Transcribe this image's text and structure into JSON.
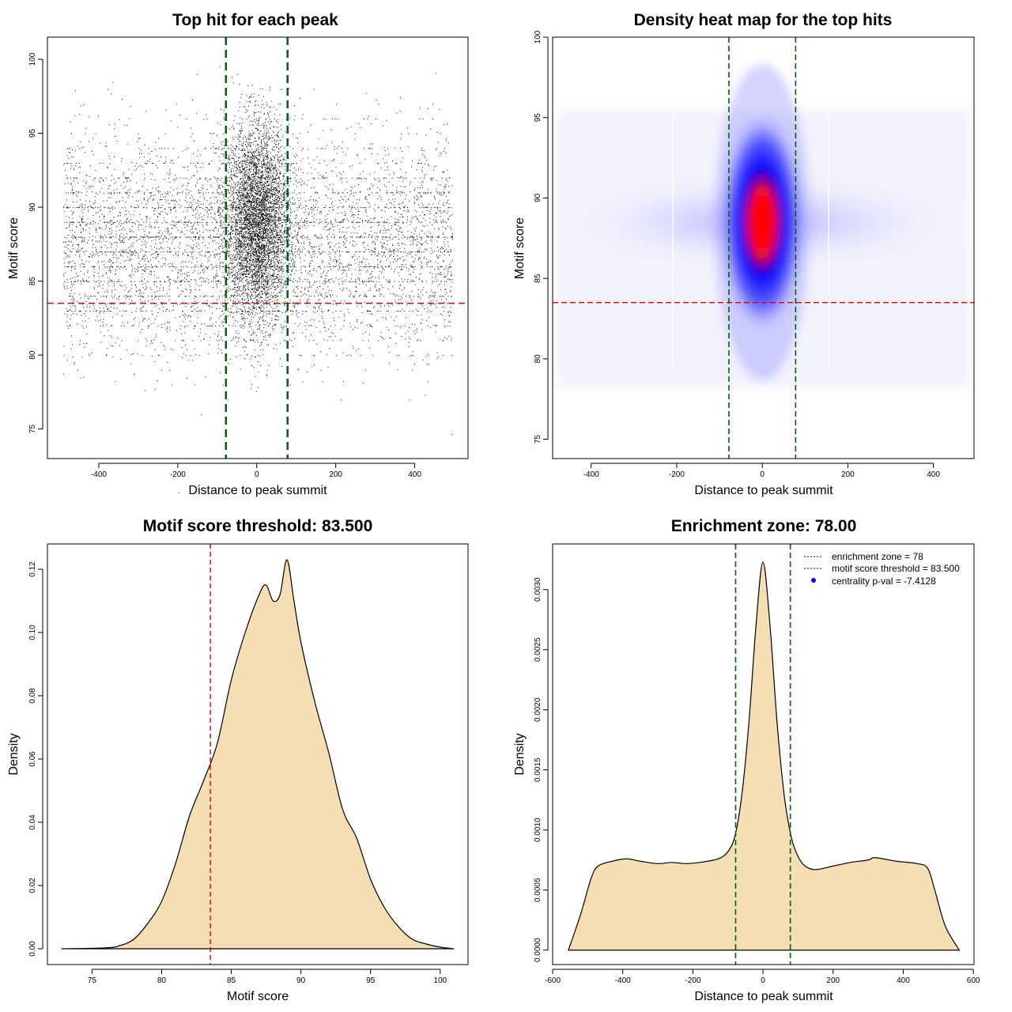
{
  "chart_data": [
    {
      "type": "scatter",
      "title": "Top hit for each peak",
      "xlabel": "Distance to peak summit",
      "ylabel": "Motif score",
      "xlim": [
        -530,
        535
      ],
      "ylim": [
        73,
        101.5
      ],
      "xticks": [
        -400,
        -200,
        0,
        200,
        400
      ],
      "xtick_labels": [
        "-400",
        "-200",
        "0",
        "200",
        "400"
      ],
      "yticks": [
        75,
        80,
        85,
        90,
        95,
        100
      ],
      "ytick_labels": [
        "75",
        "80",
        "85",
        "90",
        "95",
        "100"
      ],
      "distribution": {
        "x_range": [
          -490,
          495
        ],
        "background_score_mean": 87.5,
        "background_score_sd": 3.5,
        "central_peak_x_sd": 40,
        "central_score_mean": 89,
        "n_points_approx": 30000
      },
      "vlines": [
        -78,
        78
      ],
      "hline": 83.5,
      "vline_color": "#006400",
      "hline_color": "#dd0000"
    },
    {
      "type": "heatmap",
      "title": "Density heat map for the top hits",
      "xlabel": "Distance to peak summit",
      "ylabel": "Motif score",
      "xlim": [
        -490,
        495
      ],
      "ylim": [
        73.8,
        100
      ],
      "xticks": [
        -400,
        -200,
        0,
        200,
        400
      ],
      "xtick_labels": [
        "-400",
        "-200",
        "0",
        "200",
        "400"
      ],
      "yticks": [
        75,
        80,
        85,
        90,
        95,
        100
      ],
      "ytick_labels": [
        "75",
        "80",
        "85",
        "90",
        "95",
        "100"
      ],
      "density_peak": {
        "x": 0,
        "y": 88.5
      },
      "colorscale": [
        "#ffffff",
        "#0000ff",
        "#ff0000"
      ],
      "vlines": [
        -78,
        78
      ],
      "hline": 83.5,
      "vline_color": "#006400",
      "hline_color": "#dd0000"
    },
    {
      "type": "area",
      "title": "Motif score threshold: 83.500",
      "xlabel": "Motif score",
      "ylabel": "Density",
      "xlim": [
        71.8,
        102
      ],
      "ylim": [
        -0.005,
        0.128
      ],
      "xticks": [
        75,
        80,
        85,
        90,
        95,
        100
      ],
      "xtick_labels": [
        "75",
        "80",
        "85",
        "90",
        "95",
        "100"
      ],
      "yticks": [
        0,
        0.02,
        0.04,
        0.06,
        0.08,
        0.1,
        0.12
      ],
      "ytick_labels": [
        "0.00",
        "0.02",
        "0.04",
        "0.06",
        "0.08",
        "0.10",
        "0.12"
      ],
      "x": [
        72.8,
        76,
        77,
        78,
        79,
        80,
        81,
        82,
        83,
        84,
        85,
        86,
        87,
        87.5,
        88,
        88.5,
        89,
        89.5,
        90,
        91,
        92,
        93,
        94,
        95,
        96,
        97,
        98,
        99,
        100,
        101
      ],
      "y": [
        0,
        0.0003,
        0.001,
        0.003,
        0.008,
        0.015,
        0.027,
        0.042,
        0.053,
        0.065,
        0.085,
        0.1,
        0.112,
        0.115,
        0.11,
        0.112,
        0.123,
        0.11,
        0.097,
        0.078,
        0.062,
        0.044,
        0.035,
        0.022,
        0.013,
        0.007,
        0.003,
        0.0015,
        0.0005,
        0
      ],
      "vline": 83.5,
      "fill_color": "#f5deb3",
      "vline_color": "#dd0000"
    },
    {
      "type": "area",
      "title": "Enrichment zone: 78.00",
      "xlabel": "Distance to peak summit",
      "ylabel": "Density",
      "xlim": [
        -600,
        602
      ],
      "ylim": [
        -0.00012,
        0.00338
      ],
      "xticks": [
        -600,
        -400,
        -200,
        0,
        200,
        400,
        600
      ],
      "xtick_labels": [
        "-600",
        "-400",
        "-200",
        "0",
        "200",
        "400",
        "600"
      ],
      "yticks": [
        0,
        0.0005,
        0.001,
        0.0015,
        0.002,
        0.0025,
        0.003
      ],
      "ytick_labels": [
        "0.0000",
        "0.0005",
        "0.0010",
        "0.0015",
        "0.0020",
        "0.0025",
        "0.0030"
      ],
      "x": [
        -555,
        -520,
        -490,
        -470,
        -430,
        -390,
        -350,
        -300,
        -260,
        -220,
        -180,
        -140,
        -120,
        -100,
        -80,
        -60,
        -40,
        -20,
        0,
        20,
        40,
        60,
        80,
        100,
        120,
        150,
        200,
        250,
        300,
        320,
        380,
        440,
        470,
        490,
        520,
        560
      ],
      "y": [
        0,
        0.0003,
        0.0006,
        0.0007,
        0.00074,
        0.00076,
        0.00074,
        0.00072,
        0.00073,
        0.00072,
        0.00073,
        0.00075,
        0.00077,
        0.00082,
        0.00095,
        0.0013,
        0.0019,
        0.0027,
        0.00323,
        0.0027,
        0.0019,
        0.0013,
        0.00095,
        0.00078,
        0.0007,
        0.00067,
        0.0007,
        0.00073,
        0.00075,
        0.00077,
        0.00074,
        0.00072,
        0.00068,
        0.0005,
        0.0002,
        0
      ],
      "vlines": [
        -78,
        78
      ],
      "fill_color": "#f5deb3",
      "vline_color": "#006400",
      "legend": {
        "position": "top-right",
        "entries": [
          {
            "label": "enrichment zone = 78",
            "style": "dotted",
            "color": "#006400"
          },
          {
            "label": "motif score threshold = 83.500",
            "style": "dotted",
            "color": "#dd0000"
          },
          {
            "label": "centrality p-val = -7.4128",
            "style": "point",
            "color": "#0000ff"
          }
        ]
      }
    }
  ]
}
